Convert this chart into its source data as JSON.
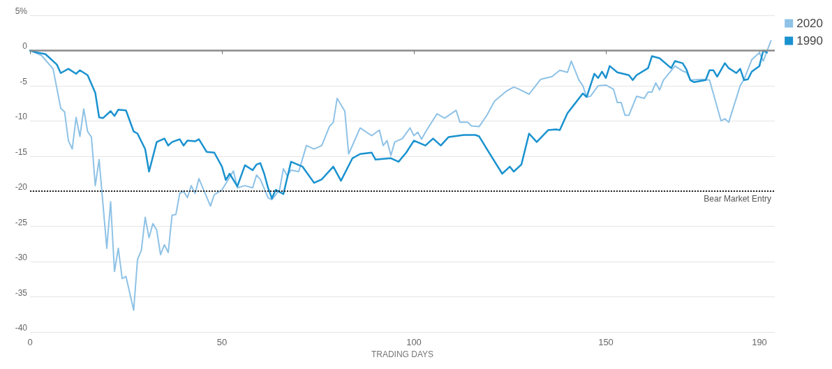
{
  "chart_data": {
    "type": "line",
    "xlabel": "TRADING DAYS",
    "xlim": [
      0,
      194
    ],
    "xticks": [
      0,
      50,
      100,
      150,
      190
    ],
    "ylim": [
      -40,
      5
    ],
    "yticks": [
      -40,
      -35,
      -30,
      -25,
      -20,
      -15,
      -10,
      -5,
      0,
      {
        "value": 5,
        "label": "5%"
      }
    ],
    "grid": "y",
    "legend": "top right",
    "marker": "none",
    "line_style": "solid",
    "series": [
      {
        "name": "2020",
        "color": "#8ec2e6",
        "x": [
          0,
          3,
          6,
          8,
          9,
          10,
          11,
          12,
          13,
          14,
          15,
          16,
          17,
          18,
          20,
          21,
          22,
          23,
          24,
          25,
          27,
          28,
          29,
          30,
          31,
          32,
          33,
          34,
          35,
          36,
          37,
          38,
          39,
          40,
          41,
          42,
          43,
          44,
          47,
          48,
          50,
          53,
          54,
          56,
          58,
          59,
          60,
          62,
          63,
          65,
          66,
          67,
          68,
          70,
          72,
          74,
          76,
          78,
          79,
          80,
          82,
          83,
          86,
          89,
          91,
          92,
          93,
          94,
          95,
          97,
          99,
          100,
          101,
          102,
          103,
          106,
          108,
          111,
          112,
          114,
          115,
          117,
          119,
          121,
          124,
          126,
          127,
          130,
          133,
          136,
          138,
          140,
          141,
          143,
          144,
          145,
          146,
          148,
          150,
          152,
          153,
          154,
          155,
          156,
          158,
          160,
          161,
          162,
          163,
          164,
          165,
          168,
          170,
          171,
          172,
          175,
          177,
          178,
          180,
          181,
          182,
          185,
          186,
          188,
          190,
          191,
          193
        ],
        "values": [
          0,
          -0.7,
          -2.6,
          -8.2,
          -8.7,
          -12.8,
          -14,
          -9.5,
          -12.2,
          -8.3,
          -11.5,
          -12.3,
          -19.2,
          -15.5,
          -28.1,
          -21.5,
          -31.4,
          -28.1,
          -32.4,
          -32.1,
          -36.9,
          -29.7,
          -28.4,
          -23.7,
          -26.6,
          -24.6,
          -25.5,
          -29,
          -27.6,
          -28.7,
          -23.4,
          -23.3,
          -20.3,
          -20,
          -20.9,
          -19.2,
          -20.3,
          -18.2,
          -22.1,
          -20.5,
          -19.8,
          -17.1,
          -19.5,
          -19.2,
          -19.5,
          -17.7,
          -18.3,
          -20.9,
          -21.2,
          -19.8,
          -16.8,
          -17.8,
          -17,
          -17.2,
          -13.5,
          -14,
          -13.5,
          -10.8,
          -10.2,
          -6.8,
          -8.6,
          -14.7,
          -11,
          -12.1,
          -11.3,
          -13.5,
          -12.8,
          -14.9,
          -13,
          -12.5,
          -11,
          -12.1,
          -11.6,
          -12.6,
          -11.6,
          -9,
          -9.6,
          -8.5,
          -10.2,
          -10.2,
          -10.7,
          -10.8,
          -9.2,
          -7.2,
          -5.8,
          -5.2,
          -5.4,
          -6.2,
          -4.1,
          -3.7,
          -2.8,
          -3.1,
          -1.5,
          -4.2,
          -5,
          -6.6,
          -6.5,
          -5,
          -4.9,
          -5.5,
          -7.4,
          -7.4,
          -9.2,
          -9.2,
          -6.5,
          -6.8,
          -5.9,
          -5.9,
          -4.6,
          -5.6,
          -4.2,
          -2.2,
          -2.9,
          -3.1,
          -4.2,
          -4.1,
          -4.2,
          -6.1,
          -10,
          -9.7,
          -10.2,
          -5,
          -4.1,
          -1.3,
          -0.3,
          -1.5,
          1.4
        ]
      },
      {
        "name": "1990",
        "color": "#1a92cf",
        "x": [
          0,
          2,
          4,
          5,
          7,
          8,
          10,
          12,
          13,
          15,
          17,
          18,
          19,
          21,
          22,
          23,
          25,
          27,
          28,
          30,
          31,
          33,
          35,
          36,
          37,
          39,
          40,
          41,
          43,
          44,
          46,
          48,
          50,
          51,
          52,
          54,
          56,
          58,
          59,
          60,
          61,
          62,
          63,
          64,
          66,
          68,
          71,
          74,
          76,
          79,
          81,
          84,
          86,
          89,
          90,
          94,
          96,
          98,
          100,
          103,
          105,
          107,
          109,
          113,
          116,
          117,
          119,
          123,
          125,
          126,
          128,
          130,
          132,
          135,
          137,
          138,
          140,
          142,
          144,
          145,
          147,
          148,
          149,
          150,
          151,
          153,
          156,
          157,
          158,
          161,
          162,
          164,
          167,
          168,
          170,
          171,
          172,
          173,
          176,
          177,
          178,
          179,
          181,
          182,
          184,
          185,
          186,
          187,
          188,
          190,
          191,
          192
        ],
        "values": [
          0,
          -0.3,
          -0.5,
          -1,
          -2,
          -3.2,
          -2.6,
          -3.3,
          -2.8,
          -3.5,
          -6,
          -9.5,
          -9.6,
          -8.6,
          -9.3,
          -8.4,
          -8.5,
          -11.5,
          -11.8,
          -14,
          -17.2,
          -13,
          -12.5,
          -13.5,
          -13,
          -12.6,
          -13.5,
          -12.8,
          -12.9,
          -12.6,
          -14.4,
          -14.5,
          -16.5,
          -18.4,
          -17.5,
          -19.3,
          -16.3,
          -17,
          -16.2,
          -16,
          -17.5,
          -19.5,
          -21,
          -19.8,
          -20.4,
          -15.8,
          -16.5,
          -18.8,
          -18.3,
          -16.5,
          -18.5,
          -15.3,
          -14.7,
          -14.5,
          -15.5,
          -15.3,
          -15.8,
          -14.5,
          -12.8,
          -13.5,
          -12.5,
          -13.5,
          -12.3,
          -12,
          -12,
          -12.2,
          -14,
          -17.5,
          -16.5,
          -17.2,
          -16.2,
          -11.8,
          -13,
          -11.3,
          -11.2,
          -11.3,
          -8.9,
          -7.5,
          -6.1,
          -6.6,
          -3.3,
          -3.9,
          -3,
          -3.9,
          -2.2,
          -3.1,
          -3.5,
          -4.2,
          -3.5,
          -2.5,
          -0.8,
          -1.1,
          -2.5,
          -1.5,
          -1.8,
          -2.7,
          -4.2,
          -4.5,
          -4.2,
          -2.8,
          -2.8,
          -3.7,
          -1.8,
          -2.5,
          -3.2,
          -2.6,
          -4.2,
          -4.1,
          -3,
          -2.2,
          0,
          -0.3
        ]
      }
    ],
    "ref_lines": [
      {
        "axis": "y",
        "value": 0,
        "label": null,
        "color": "#8a8a8a",
        "line_style": "solid"
      },
      {
        "axis": "y",
        "value": -20,
        "label": "Bear Market Entry",
        "color": "#222222",
        "line_style": "dotted"
      }
    ]
  }
}
